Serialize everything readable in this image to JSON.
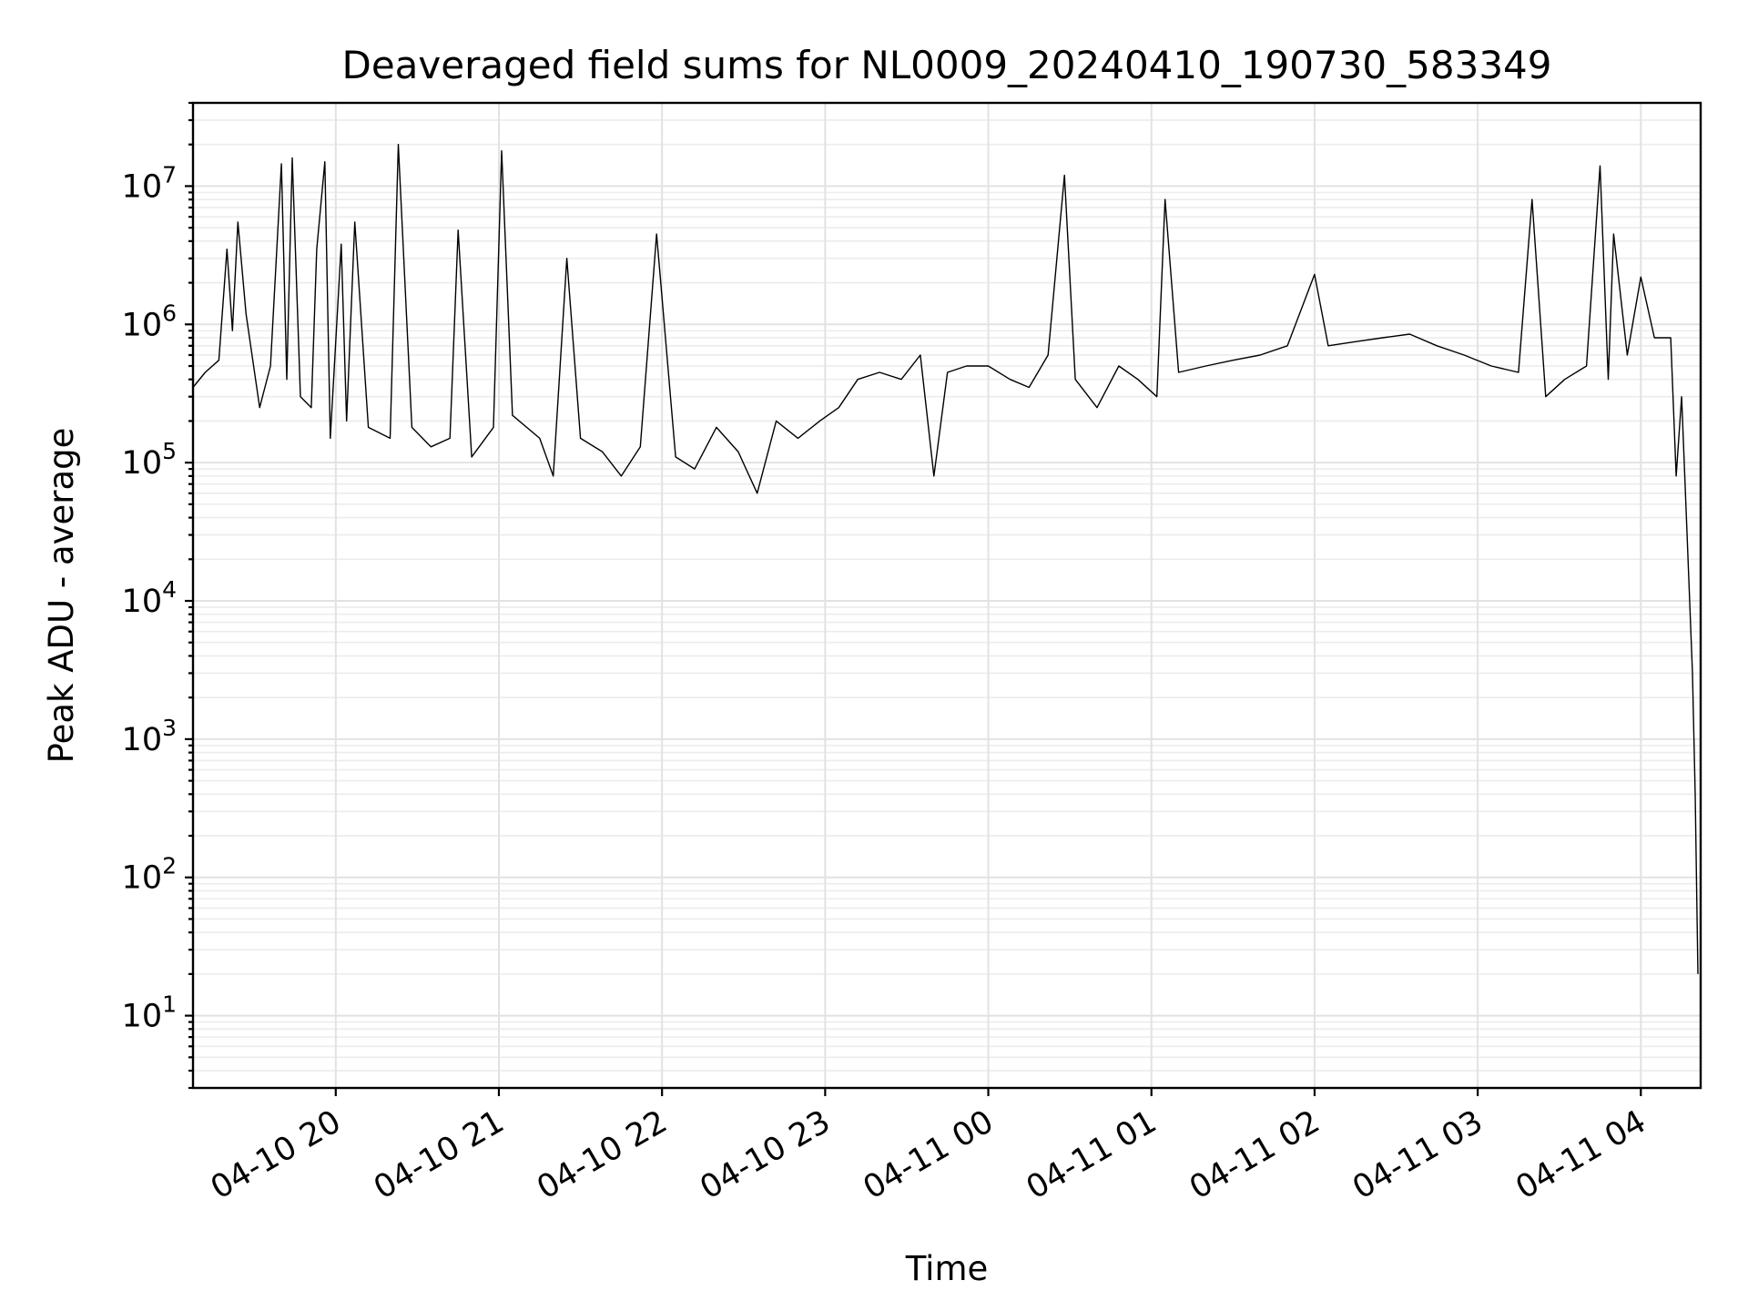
{
  "chart_data": {
    "type": "line",
    "title": "Deaveraged field sums for NL0009_20240410_190730_583349",
    "xlabel": "Time",
    "ylabel": "Peak ADU - average",
    "yscale": "log",
    "ylim": [
      3,
      40000000
    ],
    "xlim": [
      "2024-04-10 19:07:30",
      "2024-04-11 04:22:00"
    ],
    "grid": true,
    "x_ticks": [
      {
        "value": "2024-04-10 20:00",
        "label": "04-10 20"
      },
      {
        "value": "2024-04-10 21:00",
        "label": "04-10 21"
      },
      {
        "value": "2024-04-10 22:00",
        "label": "04-10 22"
      },
      {
        "value": "2024-04-10 23:00",
        "label": "04-10 23"
      },
      {
        "value": "2024-04-11 00:00",
        "label": "04-11 00"
      },
      {
        "value": "2024-04-11 01:00",
        "label": "04-11 01"
      },
      {
        "value": "2024-04-11 02:00",
        "label": "04-11 02"
      },
      {
        "value": "2024-04-11 03:00",
        "label": "04-11 03"
      },
      {
        "value": "2024-04-11 04:00",
        "label": "04-11 04"
      }
    ],
    "y_ticks": [
      {
        "value": 10,
        "base": "10",
        "exp": "1"
      },
      {
        "value": 100,
        "base": "10",
        "exp": "2"
      },
      {
        "value": 1000,
        "base": "10",
        "exp": "3"
      },
      {
        "value": 10000,
        "base": "10",
        "exp": "4"
      },
      {
        "value": 100000,
        "base": "10",
        "exp": "5"
      },
      {
        "value": 1000000,
        "base": "10",
        "exp": "6"
      },
      {
        "value": 10000000,
        "base": "10",
        "exp": "7"
      }
    ],
    "series": [
      {
        "color": "#000000",
        "points": [
          [
            "2024-04-10 19:07:30",
            350000
          ],
          [
            "2024-04-10 19:12",
            450000
          ],
          [
            "2024-04-10 19:17",
            550000
          ],
          [
            "2024-04-10 19:20",
            3500000
          ],
          [
            "2024-04-10 19:22",
            900000
          ],
          [
            "2024-04-10 19:24",
            5500000
          ],
          [
            "2024-04-10 19:27",
            1200000
          ],
          [
            "2024-04-10 19:32",
            250000
          ],
          [
            "2024-04-10 19:36",
            500000
          ],
          [
            "2024-04-10 19:40",
            14500000
          ],
          [
            "2024-04-10 19:42",
            400000
          ],
          [
            "2024-04-10 19:44",
            16000000
          ],
          [
            "2024-04-10 19:47",
            300000
          ],
          [
            "2024-04-10 19:51",
            250000
          ],
          [
            "2024-04-10 19:53",
            3500000
          ],
          [
            "2024-04-10 19:56",
            15000000
          ],
          [
            "2024-04-10 19:58",
            150000
          ],
          [
            "2024-04-10 20:02",
            3800000
          ],
          [
            "2024-04-10 20:04",
            200000
          ],
          [
            "2024-04-10 20:07",
            5500000
          ],
          [
            "2024-04-10 20:12",
            180000
          ],
          [
            "2024-04-10 20:20",
            150000
          ],
          [
            "2024-04-10 20:23",
            20000000
          ],
          [
            "2024-04-10 20:28",
            180000
          ],
          [
            "2024-04-10 20:35",
            130000
          ],
          [
            "2024-04-10 20:42",
            150000
          ],
          [
            "2024-04-10 20:45",
            4800000
          ],
          [
            "2024-04-10 20:50",
            110000
          ],
          [
            "2024-04-10 20:58",
            180000
          ],
          [
            "2024-04-10 21:01",
            18000000
          ],
          [
            "2024-04-10 21:05",
            220000
          ],
          [
            "2024-04-10 21:15",
            150000
          ],
          [
            "2024-04-10 21:20",
            80000
          ],
          [
            "2024-04-10 21:25",
            3000000
          ],
          [
            "2024-04-10 21:30",
            150000
          ],
          [
            "2024-04-10 21:38",
            120000
          ],
          [
            "2024-04-10 21:45",
            80000
          ],
          [
            "2024-04-10 21:52",
            130000
          ],
          [
            "2024-04-10 21:58",
            4500000
          ],
          [
            "2024-04-10 22:05",
            110000
          ],
          [
            "2024-04-10 22:12",
            90000
          ],
          [
            "2024-04-10 22:20",
            180000
          ],
          [
            "2024-04-10 22:28",
            120000
          ],
          [
            "2024-04-10 22:35",
            60000
          ],
          [
            "2024-04-10 22:42",
            200000
          ],
          [
            "2024-04-10 22:50",
            150000
          ],
          [
            "2024-04-10 22:58",
            200000
          ],
          [
            "2024-04-10 23:05",
            250000
          ],
          [
            "2024-04-10 23:12",
            400000
          ],
          [
            "2024-04-10 23:20",
            450000
          ],
          [
            "2024-04-10 23:28",
            400000
          ],
          [
            "2024-04-10 23:35",
            600000
          ],
          [
            "2024-04-10 23:40",
            80000
          ],
          [
            "2024-04-10 23:45",
            450000
          ],
          [
            "2024-04-10 23:52",
            500000
          ],
          [
            "2024-04-11 00:00",
            500000
          ],
          [
            "2024-04-11 00:08",
            400000
          ],
          [
            "2024-04-11 00:15",
            350000
          ],
          [
            "2024-04-11 00:22",
            600000
          ],
          [
            "2024-04-11 00:28",
            12000000
          ],
          [
            "2024-04-11 00:32",
            400000
          ],
          [
            "2024-04-11 00:40",
            250000
          ],
          [
            "2024-04-11 00:48",
            500000
          ],
          [
            "2024-04-11 00:55",
            400000
          ],
          [
            "2024-04-11 01:02",
            300000
          ],
          [
            "2024-04-11 01:05",
            8000000
          ],
          [
            "2024-04-11 01:10",
            450000
          ],
          [
            "2024-04-11 01:20",
            500000
          ],
          [
            "2024-04-11 01:30",
            550000
          ],
          [
            "2024-04-11 01:40",
            600000
          ],
          [
            "2024-04-11 01:50",
            700000
          ],
          [
            "2024-04-11 02:00",
            2300000
          ],
          [
            "2024-04-11 02:05",
            700000
          ],
          [
            "2024-04-11 02:15",
            750000
          ],
          [
            "2024-04-11 02:25",
            800000
          ],
          [
            "2024-04-11 02:35",
            850000
          ],
          [
            "2024-04-11 02:45",
            700000
          ],
          [
            "2024-04-11 02:55",
            600000
          ],
          [
            "2024-04-11 03:05",
            500000
          ],
          [
            "2024-04-11 03:15",
            450000
          ],
          [
            "2024-04-11 03:20",
            8000000
          ],
          [
            "2024-04-11 03:25",
            300000
          ],
          [
            "2024-04-11 03:32",
            400000
          ],
          [
            "2024-04-11 03:40",
            500000
          ],
          [
            "2024-04-11 03:45",
            14000000
          ],
          [
            "2024-04-11 03:48",
            400000
          ],
          [
            "2024-04-11 03:50",
            4500000
          ],
          [
            "2024-04-11 03:55",
            600000
          ],
          [
            "2024-04-11 04:00",
            2200000
          ],
          [
            "2024-04-11 04:05",
            800000
          ],
          [
            "2024-04-11 04:11",
            800000
          ],
          [
            "2024-04-11 04:13",
            80000
          ],
          [
            "2024-04-11 04:15",
            300000
          ],
          [
            "2024-04-11 04:17",
            30000
          ],
          [
            "2024-04-11 04:19",
            3000
          ],
          [
            "2024-04-11 04:20",
            400
          ],
          [
            "2024-04-11 04:21",
            20
          ]
        ]
      }
    ]
  }
}
